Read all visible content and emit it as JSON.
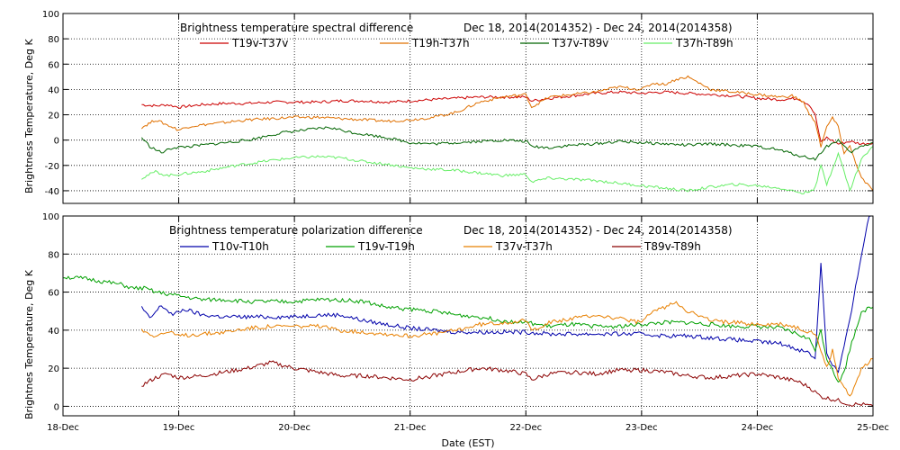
{
  "chart_data": [
    {
      "type": "line",
      "title": "Brightness temperature spectral difference",
      "date_range": "Dec 18, 2014(2014352) - Dec 24, 2014(2014358)",
      "ylabel": "Brightness Temperature, Deg K",
      "ylim": [
        -50,
        100
      ],
      "yticks": [
        "100",
        "80",
        "60",
        "40",
        "20",
        "0",
        "-20",
        "-40"
      ],
      "xlim": [
        0,
        7
      ],
      "grid": true,
      "legend_placement": "top",
      "series": [
        {
          "name": "T19v-T37v",
          "color": "#cc0000",
          "x": [
            0.68,
            0.8,
            0.9,
            1.0,
            1.2,
            1.4,
            1.6,
            1.8,
            2.0,
            2.2,
            2.4,
            2.6,
            2.8,
            3.0,
            3.2,
            3.4,
            3.6,
            3.8,
            4.0,
            4.05,
            4.2,
            4.4,
            4.6,
            4.8,
            5.0,
            5.2,
            5.4,
            5.6,
            5.8,
            6.0,
            6.2,
            6.35,
            6.45,
            6.5,
            6.55,
            6.6,
            6.7,
            6.8,
            6.9,
            7.0
          ],
          "y": [
            28,
            27,
            28,
            26,
            28,
            29,
            29,
            30,
            30,
            30,
            31,
            31,
            30,
            31,
            32,
            33,
            34,
            34,
            34,
            31,
            33,
            35,
            37,
            38,
            37,
            38,
            37,
            36,
            35,
            33,
            32,
            33,
            28,
            20,
            -2,
            2,
            -3,
            -1,
            -3,
            -2
          ]
        },
        {
          "name": "T19h-T37h",
          "color": "#e07000",
          "x": [
            0.68,
            0.8,
            0.9,
            1.0,
            1.1,
            1.2,
            1.4,
            1.6,
            1.8,
            2.0,
            2.2,
            2.4,
            2.6,
            2.8,
            3.0,
            3.2,
            3.4,
            3.6,
            3.8,
            4.0,
            4.05,
            4.2,
            4.4,
            4.6,
            4.8,
            5.0,
            5.1,
            5.2,
            5.3,
            5.4,
            5.6,
            5.8,
            6.0,
            6.2,
            6.3,
            6.4,
            6.45,
            6.5,
            6.55,
            6.6,
            6.65,
            6.7,
            6.75,
            6.8,
            6.9,
            7.0
          ],
          "y": [
            10,
            16,
            12,
            8,
            11,
            12,
            14,
            16,
            17,
            18,
            18,
            17,
            16,
            15,
            16,
            18,
            22,
            30,
            34,
            36,
            26,
            34,
            36,
            38,
            42,
            40,
            45,
            44,
            48,
            50,
            40,
            38,
            36,
            34,
            35,
            30,
            20,
            15,
            -5,
            10,
            18,
            10,
            -10,
            -5,
            -30,
            -40
          ]
        },
        {
          "name": "T37v-T89v",
          "color": "#006400",
          "x": [
            0.68,
            0.75,
            0.85,
            0.95,
            1.1,
            1.3,
            1.6,
            1.9,
            2.1,
            2.3,
            2.5,
            2.8,
            3.0,
            3.2,
            3.4,
            3.6,
            3.8,
            4.0,
            4.05,
            4.2,
            4.4,
            4.6,
            4.8,
            5.0,
            5.2,
            5.4,
            5.6,
            5.8,
            6.0,
            6.2,
            6.35,
            6.5,
            6.6,
            6.7,
            6.8,
            6.9,
            7.0
          ],
          "y": [
            2,
            -5,
            -10,
            -6,
            -5,
            -3,
            0,
            6,
            8,
            10,
            6,
            2,
            -2,
            -3,
            -2,
            -1,
            0,
            -1,
            -5,
            -6,
            -4,
            -3,
            -1,
            -2,
            -3,
            -4,
            -3,
            -4,
            -5,
            -8,
            -12,
            -15,
            -5,
            0,
            -10,
            -5,
            -2
          ]
        },
        {
          "name": "T37h-T89h",
          "color": "#66ee66",
          "x": [
            0.68,
            0.8,
            0.9,
            1.0,
            1.2,
            1.5,
            1.8,
            2.0,
            2.2,
            2.4,
            2.6,
            2.8,
            3.0,
            3.2,
            3.4,
            3.6,
            3.8,
            4.0,
            4.05,
            4.2,
            4.4,
            4.6,
            4.8,
            5.0,
            5.2,
            5.4,
            5.6,
            5.8,
            6.0,
            6.2,
            6.4,
            6.5,
            6.55,
            6.6,
            6.7,
            6.8,
            6.9,
            7.0
          ],
          "y": [
            -30,
            -25,
            -28,
            -27,
            -25,
            -20,
            -16,
            -14,
            -13,
            -14,
            -17,
            -19,
            -22,
            -23,
            -24,
            -26,
            -28,
            -27,
            -33,
            -30,
            -31,
            -32,
            -34,
            -36,
            -38,
            -40,
            -37,
            -35,
            -36,
            -38,
            -42,
            -38,
            -20,
            -35,
            -10,
            -40,
            -15,
            -5
          ]
        }
      ]
    },
    {
      "type": "line",
      "title": "Brightness temperature polarization difference",
      "date_range": "Dec 18, 2014(2014352) - Dec 24, 2014(2014358)",
      "xlabel": "Date (EST)",
      "ylabel": "Brightnes Temperature, Deg K",
      "ylim": [
        -5,
        100
      ],
      "yticks": [
        "100",
        "80",
        "60",
        "40",
        "20",
        "0"
      ],
      "xlim": [
        0,
        7
      ],
      "xticks": [
        "18-Dec",
        "19-Dec",
        "20-Dec",
        "21-Dec",
        "22-Dec",
        "23-Dec",
        "24-Dec",
        "25-Dec"
      ],
      "grid": true,
      "legend_placement": "top",
      "series": [
        {
          "name": "T10v-T10h",
          "color": "#0000aa",
          "x": [
            0.68,
            0.75,
            0.85,
            0.95,
            1.05,
            1.2,
            1.4,
            1.6,
            1.8,
            2.0,
            2.2,
            2.4,
            2.6,
            2.8,
            3.0,
            3.2,
            3.4,
            3.6,
            3.8,
            4.0,
            4.2,
            4.4,
            4.6,
            4.8,
            5.0,
            5.2,
            5.4,
            5.6,
            5.8,
            6.0,
            6.2,
            6.35,
            6.45,
            6.5,
            6.55,
            6.6,
            6.65,
            6.7,
            6.8,
            6.9,
            7.0
          ],
          "y": [
            52,
            46,
            53,
            48,
            51,
            48,
            47,
            47,
            47,
            47,
            48,
            48,
            45,
            43,
            41,
            40,
            39,
            39,
            39,
            39,
            38,
            38,
            38,
            38,
            38,
            37,
            37,
            36,
            35,
            34,
            33,
            30,
            28,
            25,
            75,
            28,
            22,
            18,
            45,
            80,
            110
          ]
        },
        {
          "name": "T19v-T19h",
          "color": "#00a000",
          "x": [
            0.0,
            0.2,
            0.4,
            0.5,
            0.6,
            0.7,
            0.8,
            0.9,
            1.0,
            1.1,
            1.2,
            1.4,
            1.6,
            1.8,
            2.0,
            2.2,
            2.4,
            2.6,
            2.8,
            3.0,
            3.2,
            3.4,
            3.6,
            3.8,
            4.0,
            4.2,
            4.4,
            4.6,
            4.8,
            5.0,
            5.2,
            5.4,
            5.6,
            5.8,
            6.0,
            6.2,
            6.35,
            6.45,
            6.5,
            6.55,
            6.6,
            6.65,
            6.7,
            6.75,
            6.8,
            6.9,
            7.0
          ],
          "y": [
            68,
            67,
            65,
            64,
            62,
            62,
            60,
            59,
            58,
            57,
            56,
            56,
            55,
            55,
            55,
            56,
            56,
            55,
            52,
            51,
            50,
            48,
            47,
            45,
            44,
            42,
            43,
            42,
            42,
            43,
            44,
            44,
            43,
            42,
            42,
            41,
            38,
            35,
            30,
            40,
            25,
            20,
            12,
            18,
            30,
            50,
            52
          ]
        },
        {
          "name": "T37v-T37h",
          "color": "#e88000",
          "x": [
            0.68,
            0.8,
            0.9,
            1.0,
            1.2,
            1.4,
            1.6,
            1.8,
            2.0,
            2.2,
            2.4,
            2.6,
            2.8,
            3.0,
            3.2,
            3.4,
            3.6,
            3.8,
            4.0,
            4.05,
            4.2,
            4.4,
            4.6,
            4.8,
            5.0,
            5.1,
            5.2,
            5.3,
            5.4,
            5.6,
            5.8,
            6.0,
            6.2,
            6.3,
            6.4,
            6.5,
            6.55,
            6.6,
            6.65,
            6.7,
            6.75,
            6.8,
            6.9,
            7.0
          ],
          "y": [
            40,
            37,
            39,
            37,
            38,
            39,
            41,
            42,
            42,
            42,
            40,
            39,
            38,
            37,
            38,
            40,
            43,
            44,
            45,
            40,
            44,
            46,
            48,
            46,
            44,
            50,
            52,
            55,
            50,
            45,
            44,
            43,
            43,
            42,
            40,
            38,
            30,
            20,
            30,
            15,
            10,
            5,
            20,
            25
          ]
        },
        {
          "name": "T89v-T89h",
          "color": "#8b0000",
          "x": [
            0.68,
            0.8,
            0.9,
            1.0,
            1.2,
            1.4,
            1.6,
            1.8,
            2.0,
            2.2,
            2.4,
            2.6,
            2.8,
            3.0,
            3.2,
            3.4,
            3.6,
            3.8,
            4.0,
            4.05,
            4.2,
            4.4,
            4.6,
            4.8,
            5.0,
            5.2,
            5.4,
            5.6,
            5.8,
            6.0,
            6.2,
            6.35,
            6.45,
            6.55,
            6.7,
            6.8,
            6.9,
            7.0
          ],
          "y": [
            11,
            15,
            17,
            15,
            16,
            18,
            20,
            23,
            20,
            18,
            16,
            16,
            15,
            14,
            16,
            18,
            20,
            19,
            17,
            14,
            17,
            18,
            17,
            19,
            19,
            18,
            16,
            15,
            16,
            17,
            15,
            13,
            10,
            5,
            3,
            1,
            1,
            0
          ]
        }
      ]
    }
  ]
}
